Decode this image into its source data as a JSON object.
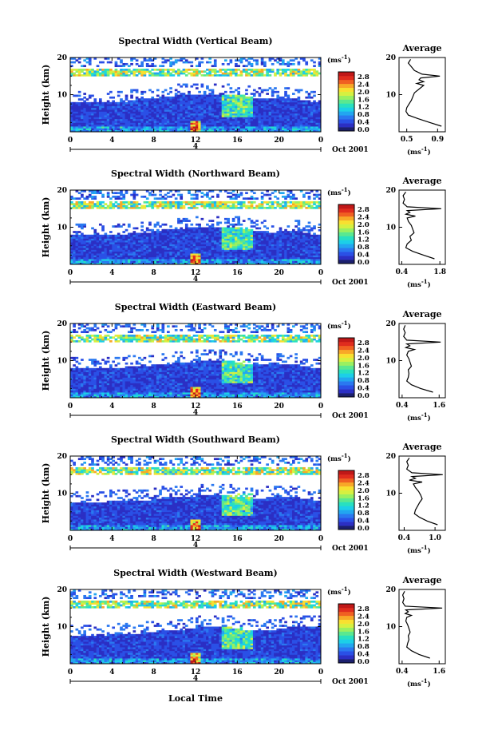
{
  "chart_data": {
    "type": "heatmap",
    "x_label": "Local Time",
    "x_ticks": [
      "0",
      "4",
      "8",
      "12",
      "16",
      "20",
      "0"
    ],
    "date_label": "Oct 2001",
    "day_marker": "4",
    "y_label": "Height (km)",
    "y_ticks": [
      "10",
      "20"
    ],
    "colorbar": {
      "unit_label": "(ms",
      "unit_exponent": "-1",
      "unit_close": ")",
      "tick_labels": [
        "0.0",
        "0.4",
        "0.8",
        "1.2",
        "1.6",
        "2.0",
        "2.4",
        "2.8"
      ],
      "colors": [
        "#1b1f6e",
        "#2b2fc4",
        "#2a50e6",
        "#2a78f0",
        "#22a6f0",
        "#1ccfe8",
        "#28e0c0",
        "#5ae890",
        "#9af060",
        "#d6f040",
        "#f8e030",
        "#f8a828",
        "#f06022",
        "#e02c1e",
        "#c01818"
      ]
    },
    "profile_title": "Average",
    "profile_unit_label": "(ms",
    "profile_unit_exponent": "-1",
    "profile_unit_close": ")",
    "profile_y_ticks": [
      "10",
      "20"
    ],
    "panels": [
      {
        "title": "Spectral Width (Vertical Beam)",
        "profile_x_ticks": [
          "0.5",
          "0.9"
        ],
        "profile_x_range": [
          0.4,
          1.0
        ],
        "mean_profile": [
          [
            0.95,
            1.5
          ],
          [
            0.8,
            2.5
          ],
          [
            0.65,
            3.5
          ],
          [
            0.52,
            4.5
          ],
          [
            0.49,
            5.5
          ],
          [
            0.5,
            6.5
          ],
          [
            0.53,
            7.5
          ],
          [
            0.56,
            8.5
          ],
          [
            0.58,
            9.5
          ],
          [
            0.6,
            10.5
          ],
          [
            0.66,
            11.5
          ],
          [
            0.72,
            12.5
          ],
          [
            0.63,
            13
          ],
          [
            0.72,
            13.5
          ],
          [
            0.66,
            14
          ],
          [
            0.68,
            14.5
          ],
          [
            0.93,
            15
          ],
          [
            0.7,
            15.5
          ],
          [
            0.6,
            16.5
          ],
          [
            0.56,
            17.5
          ],
          [
            0.52,
            18.5
          ],
          [
            0.55,
            19.5
          ]
        ],
        "cutoff_fraction": [
          0.4,
          0.38,
          0.38,
          0.38,
          0.38,
          0.35,
          0.32,
          0.28,
          0.25,
          0.22,
          0.2,
          0.18,
          0.18,
          0.18,
          0.2,
          0.25,
          0.3,
          0.3,
          0.28,
          0.32,
          0.35,
          0.38
        ]
      },
      {
        "title": "Spectral Width (Northward Beam)",
        "profile_x_ticks": [
          "0.4",
          "1.8"
        ],
        "profile_x_range": [
          0.3,
          2.0
        ],
        "mean_profile": [
          [
            1.6,
            1.5
          ],
          [
            1.2,
            2.5
          ],
          [
            0.8,
            3.5
          ],
          [
            0.55,
            4.5
          ],
          [
            0.6,
            5.5
          ],
          [
            0.75,
            6.5
          ],
          [
            0.7,
            7.5
          ],
          [
            0.85,
            8.5
          ],
          [
            0.8,
            9.5
          ],
          [
            0.75,
            10.5
          ],
          [
            0.65,
            11.5
          ],
          [
            0.6,
            12.5
          ],
          [
            0.9,
            13
          ],
          [
            0.55,
            13.5
          ],
          [
            0.7,
            14
          ],
          [
            0.6,
            14.5
          ],
          [
            1.85,
            15
          ],
          [
            0.6,
            15.5
          ],
          [
            0.45,
            16.5
          ],
          [
            0.5,
            17.5
          ],
          [
            0.45,
            18.5
          ],
          [
            0.55,
            19.5
          ]
        ],
        "cutoff_fraction": [
          0.42,
          0.4,
          0.4,
          0.4,
          0.38,
          0.36,
          0.33,
          0.3,
          0.27,
          0.25,
          0.22,
          0.2,
          0.2,
          0.2,
          0.22,
          0.25,
          0.3,
          0.33,
          0.3,
          0.32,
          0.35,
          0.38
        ]
      },
      {
        "title": "Spectral Width (Eastward Beam)",
        "profile_x_ticks": [
          "0.4",
          "1.6"
        ],
        "profile_x_range": [
          0.3,
          1.8
        ],
        "mean_profile": [
          [
            1.4,
            1.5
          ],
          [
            1.0,
            2.5
          ],
          [
            0.7,
            3.5
          ],
          [
            0.55,
            4.5
          ],
          [
            0.6,
            5.5
          ],
          [
            0.62,
            6.5
          ],
          [
            0.6,
            7.5
          ],
          [
            0.7,
            8.5
          ],
          [
            0.66,
            9.5
          ],
          [
            0.62,
            10.5
          ],
          [
            0.55,
            11.5
          ],
          [
            0.6,
            12.5
          ],
          [
            0.8,
            13
          ],
          [
            0.52,
            13.5
          ],
          [
            0.65,
            14
          ],
          [
            0.55,
            14.5
          ],
          [
            1.65,
            15
          ],
          [
            0.55,
            15.5
          ],
          [
            0.45,
            16.5
          ],
          [
            0.5,
            17.5
          ],
          [
            0.45,
            18.5
          ],
          [
            0.5,
            19.5
          ]
        ],
        "cutoff_fraction": [
          0.42,
          0.42,
          0.4,
          0.38,
          0.38,
          0.36,
          0.34,
          0.3,
          0.28,
          0.26,
          0.24,
          0.22,
          0.22,
          0.22,
          0.24,
          0.28,
          0.32,
          0.3,
          0.28,
          0.32,
          0.35,
          0.38
        ]
      },
      {
        "title": "Spectral Width (Southward Beam)",
        "profile_x_ticks": [
          "0.4",
          "1.0"
        ],
        "profile_x_range": [
          0.3,
          1.2
        ],
        "mean_profile": [
          [
            1.05,
            1.5
          ],
          [
            0.85,
            2.5
          ],
          [
            0.7,
            3.5
          ],
          [
            0.6,
            4.5
          ],
          [
            0.62,
            5.5
          ],
          [
            0.66,
            6.5
          ],
          [
            0.7,
            7.5
          ],
          [
            0.75,
            8.5
          ],
          [
            0.72,
            9.5
          ],
          [
            0.68,
            10.5
          ],
          [
            0.62,
            11.5
          ],
          [
            0.58,
            12.5
          ],
          [
            0.75,
            13
          ],
          [
            0.5,
            13.5
          ],
          [
            0.62,
            14
          ],
          [
            0.55,
            14.5
          ],
          [
            1.15,
            15
          ],
          [
            0.55,
            15.5
          ],
          [
            0.45,
            16.5
          ],
          [
            0.48,
            17.5
          ],
          [
            0.45,
            18.5
          ],
          [
            0.5,
            19.5
          ]
        ],
        "cutoff_fraction": [
          0.45,
          0.45,
          0.43,
          0.42,
          0.42,
          0.4,
          0.38,
          0.35,
          0.32,
          0.3,
          0.28,
          0.26,
          0.26,
          0.26,
          0.28,
          0.3,
          0.33,
          0.32,
          0.3,
          0.32,
          0.35,
          0.38
        ]
      },
      {
        "title": "Spectral Width (Westward Beam)",
        "profile_x_ticks": [
          "0.4",
          "1.6"
        ],
        "profile_x_range": [
          0.3,
          1.8
        ],
        "mean_profile": [
          [
            1.3,
            1.5
          ],
          [
            0.95,
            2.5
          ],
          [
            0.7,
            3.5
          ],
          [
            0.55,
            4.5
          ],
          [
            0.58,
            5.5
          ],
          [
            0.62,
            6.5
          ],
          [
            0.6,
            7.5
          ],
          [
            0.66,
            8.5
          ],
          [
            0.62,
            9.5
          ],
          [
            0.58,
            10.5
          ],
          [
            0.52,
            11.5
          ],
          [
            0.55,
            12.5
          ],
          [
            0.7,
            13
          ],
          [
            0.5,
            13.5
          ],
          [
            0.6,
            14
          ],
          [
            0.52,
            14.5
          ],
          [
            1.7,
            15
          ],
          [
            0.5,
            15.5
          ],
          [
            0.42,
            16.5
          ],
          [
            0.46,
            17.5
          ],
          [
            0.42,
            18.5
          ],
          [
            0.48,
            19.5
          ]
        ],
        "cutoff_fraction": [
          0.45,
          0.44,
          0.43,
          0.42,
          0.4,
          0.38,
          0.36,
          0.33,
          0.3,
          0.28,
          0.25,
          0.22,
          0.22,
          0.22,
          0.25,
          0.28,
          0.3,
          0.28,
          0.25,
          0.22,
          0.2,
          0.18
        ]
      }
    ]
  }
}
